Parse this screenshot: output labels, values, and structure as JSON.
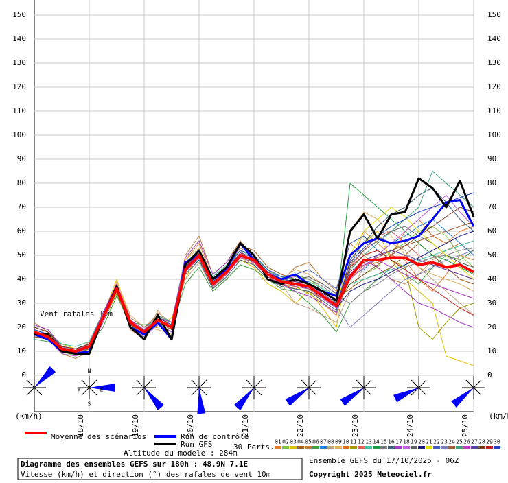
{
  "chart_data": {
    "type": "line",
    "title": "Diagramme des ensembles GEFS sur 180h : 48.9N 7.1E",
    "subtitle": "Vitesse (km/h) et direction (°) des rafales de vent 10m",
    "altitude": "Altitude du modele : 284m",
    "run_info": "Ensemble GEFS du 17/10/2025 - 06Z",
    "copyright": "Copyright 2025 Meteociel.fr",
    "ylabel": "(km/h)",
    "annotation": "Vent rafales 10m",
    "perts_label": "30 Perts.",
    "compass": [
      "N",
      "S",
      "W",
      "E"
    ],
    "categories": [
      null,
      null,
      null,
      null,
      "18/10",
      null,
      null,
      null,
      "19/10",
      null,
      null,
      null,
      "20/10",
      null,
      null,
      null,
      "21/10",
      null,
      null,
      null,
      "22/10",
      null,
      null,
      null,
      "23/10",
      null,
      null,
      null,
      "24/10",
      null,
      null,
      null,
      "25/10"
    ],
    "ylim": [
      0,
      150
    ],
    "yticks": [
      0,
      10,
      20,
      30,
      40,
      50,
      60,
      70,
      80,
      90,
      100,
      110,
      120,
      130,
      140,
      150
    ],
    "grid": true,
    "wind_directions": [
      225,
      270,
      320,
      355,
      40,
      55,
      55,
      65,
      50
    ],
    "series": [
      {
        "name": "01",
        "color": "#e08030",
        "values": [
          20,
          18,
          12,
          9,
          14,
          26,
          38,
          24,
          20,
          25,
          22,
          48,
          55,
          40,
          45,
          52,
          46,
          40,
          38,
          36,
          38,
          30,
          25,
          45,
          60,
          55,
          50,
          48,
          40,
          35,
          42,
          50,
          48
        ]
      },
      {
        "name": "02",
        "color": "#80c040",
        "values": [
          16,
          15,
          10,
          8,
          11,
          22,
          34,
          20,
          16,
          22,
          18,
          42,
          48,
          36,
          42,
          50,
          50,
          44,
          40,
          42,
          40,
          36,
          30,
          38,
          42,
          45,
          52,
          55,
          60,
          62,
          58,
          50,
          45
        ]
      },
      {
        "name": "03",
        "color": "#e0c000",
        "values": [
          19,
          17,
          13,
          11,
          12,
          25,
          40,
          23,
          19,
          20,
          24,
          40,
          52,
          37,
          44,
          48,
          45,
          38,
          35,
          30,
          35,
          28,
          20,
          50,
          55,
          60,
          48,
          40,
          35,
          30,
          8,
          6,
          4
        ]
      },
      {
        "name": "04",
        "color": "#a06020",
        "values": [
          17,
          16,
          11,
          10,
          13,
          23,
          35,
          21,
          18,
          24,
          21,
          46,
          50,
          39,
          42,
          54,
          52,
          45,
          42,
          40,
          38,
          34,
          32,
          36,
          40,
          42,
          45,
          50,
          55,
          50,
          45,
          40,
          38
        ]
      },
      {
        "name": "05",
        "color": "#c08040",
        "values": [
          22,
          18,
          9,
          7,
          10,
          24,
          36,
          19,
          15,
          27,
          19,
          50,
          58,
          42,
          47,
          56,
          49,
          41,
          39,
          45,
          47,
          40,
          35,
          55,
          50,
          45,
          40,
          38,
          42,
          48,
          52,
          55,
          50
        ]
      },
      {
        "name": "06",
        "color": "#40a040",
        "values": [
          15,
          14,
          12,
          11,
          12,
          20,
          33,
          22,
          21,
          22,
          20,
          38,
          45,
          35,
          40,
          46,
          44,
          40,
          36,
          35,
          30,
          25,
          18,
          30,
          35,
          40,
          45,
          42,
          38,
          45,
          50,
          48,
          52
        ]
      },
      {
        "name": "07",
        "color": "#2080e0",
        "values": [
          18,
          16,
          10,
          10,
          11,
          26,
          37,
          23,
          17,
          21,
          18,
          45,
          48,
          38,
          44,
          50,
          47,
          43,
          41,
          38,
          36,
          34,
          30,
          42,
          44,
          50,
          55,
          58,
          62,
          65,
          60,
          55,
          50
        ]
      },
      {
        "name": "08",
        "color": "#c0a080",
        "values": [
          21,
          19,
          12,
          10,
          13,
          25,
          35,
          21,
          19,
          26,
          22,
          40,
          47,
          36,
          45,
          53,
          50,
          44,
          38,
          30,
          28,
          25,
          22,
          35,
          45,
          50,
          55,
          52,
          45,
          40,
          35,
          30,
          25
        ]
      },
      {
        "name": "09",
        "color": "#e0b060",
        "values": [
          17,
          15,
          9,
          8,
          10,
          23,
          39,
          25,
          20,
          19,
          17,
          48,
          53,
          40,
          42,
          49,
          46,
          40,
          40,
          44,
          42,
          38,
          34,
          60,
          68,
          65,
          58,
          50,
          45,
          42,
          40,
          38,
          35
        ]
      },
      {
        "name": "10",
        "color": "#e07020",
        "values": [
          19,
          17,
          12,
          11,
          13,
          24,
          38,
          22,
          18,
          24,
          21,
          43,
          51,
          37,
          43,
          51,
          47,
          41,
          38,
          36,
          35,
          32,
          28,
          40,
          46,
          47,
          50,
          60,
          65,
          58,
          55,
          60,
          62
        ]
      },
      {
        "name": "11",
        "color": "#a0a000",
        "values": [
          16,
          16,
          11,
          10,
          12,
          22,
          34,
          21,
          17,
          23,
          20,
          45,
          49,
          39,
          44,
          50,
          48,
          43,
          40,
          37,
          34,
          30,
          26,
          44,
          50,
          52,
          48,
          45,
          20,
          15,
          22,
          28,
          30
        ]
      },
      {
        "name": "12",
        "color": "#e06060",
        "values": [
          18,
          17,
          10,
          9,
          11,
          24,
          37,
          23,
          18,
          22,
          19,
          44,
          50,
          37,
          42,
          49,
          48,
          42,
          39,
          39,
          38,
          35,
          31,
          45,
          52,
          58,
          60,
          55,
          50,
          46,
          44,
          42,
          40
        ]
      },
      {
        "name": "13",
        "color": "#40c0a0",
        "values": [
          20,
          18,
          13,
          12,
          14,
          26,
          36,
          20,
          16,
          25,
          22,
          47,
          52,
          41,
          46,
          52,
          49,
          44,
          41,
          40,
          39,
          36,
          33,
          38,
          40,
          42,
          44,
          46,
          48,
          50,
          52,
          54,
          56
        ]
      },
      {
        "name": "14",
        "color": "#20a040",
        "values": [
          17,
          15,
          10,
          9,
          11,
          23,
          35,
          22,
          19,
          21,
          18,
          43,
          49,
          37,
          43,
          50,
          47,
          41,
          38,
          37,
          36,
          32,
          28,
          80,
          75,
          70,
          65,
          60,
          55,
          50,
          48,
          45,
          42
        ]
      },
      {
        "name": "15",
        "color": "#808080",
        "values": [
          19,
          17,
          11,
          10,
          12,
          25,
          37,
          24,
          20,
          24,
          21,
          46,
          51,
          39,
          44,
          51,
          49,
          43,
          40,
          41,
          40,
          37,
          33,
          30,
          35,
          38,
          42,
          45,
          47,
          49,
          50,
          52,
          53
        ]
      },
      {
        "name": "16",
        "color": "#406080",
        "values": [
          18,
          16,
          12,
          11,
          13,
          24,
          36,
          21,
          17,
          23,
          20,
          42,
          48,
          36,
          41,
          48,
          46,
          40,
          37,
          36,
          35,
          31,
          27,
          48,
          55,
          62,
          67,
          70,
          75,
          78,
          72,
          65,
          60
        ]
      },
      {
        "name": "17",
        "color": "#a040c0",
        "values": [
          21,
          19,
          12,
          10,
          13,
          26,
          38,
          22,
          18,
          24,
          22,
          49,
          56,
          42,
          47,
          55,
          50,
          42,
          38,
          35,
          33,
          30,
          26,
          42,
          48,
          45,
          40,
          35,
          30,
          28,
          25,
          22,
          20
        ]
      },
      {
        "name": "18",
        "color": "#c060e0",
        "values": [
          16,
          15,
          9,
          8,
          10,
          22,
          35,
          20,
          16,
          21,
          18,
          44,
          50,
          38,
          43,
          50,
          48,
          43,
          40,
          39,
          37,
          34,
          30,
          40,
          45,
          50,
          55,
          60,
          65,
          70,
          75,
          68,
          62
        ]
      },
      {
        "name": "19",
        "color": "#606060",
        "values": [
          18,
          16,
          11,
          10,
          12,
          24,
          36,
          23,
          19,
          23,
          20,
          45,
          51,
          39,
          44,
          50,
          48,
          42,
          39,
          40,
          41,
          38,
          34,
          46,
          52,
          56,
          60,
          62,
          58,
          55,
          50,
          47,
          45
        ]
      },
      {
        "name": "20",
        "color": "#202080",
        "values": [
          19,
          17,
          12,
          11,
          13,
          25,
          37,
          22,
          18,
          24,
          21,
          44,
          50,
          38,
          43,
          50,
          48,
          42,
          39,
          38,
          36,
          32,
          28,
          35,
          38,
          40,
          43,
          46,
          49,
          52,
          55,
          58,
          60
        ]
      },
      {
        "name": "21",
        "color": "#e0e000",
        "values": [
          17,
          15,
          10,
          9,
          11,
          23,
          35,
          21,
          17,
          22,
          19,
          43,
          49,
          37,
          42,
          49,
          47,
          41,
          38,
          37,
          36,
          33,
          29,
          50,
          60,
          65,
          70,
          66,
          60,
          55,
          50,
          45,
          40
        ]
      },
      {
        "name": "22",
        "color": "#4060c0",
        "values": [
          18,
          16,
          11,
          10,
          12,
          24,
          36,
          22,
          18,
          23,
          20,
          46,
          52,
          38,
          45,
          52,
          50,
          44,
          41,
          42,
          44,
          40,
          36,
          55,
          58,
          52,
          48,
          44,
          40,
          38,
          36,
          34,
          32
        ]
      },
      {
        "name": "23",
        "color": "#8080c0",
        "values": [
          20,
          18,
          12,
          10,
          13,
          25,
          37,
          23,
          19,
          24,
          21,
          44,
          50,
          38,
          43,
          50,
          48,
          42,
          39,
          38,
          37,
          33,
          29,
          20,
          25,
          30,
          35,
          40,
          42,
          45,
          48,
          50,
          52
        ]
      },
      {
        "name": "24",
        "color": "#a06040",
        "values": [
          16,
          15,
          10,
          9,
          11,
          23,
          35,
          21,
          17,
          22,
          19,
          45,
          51,
          37,
          44,
          51,
          49,
          43,
          40,
          39,
          38,
          34,
          30,
          41,
          47,
          49,
          52,
          54,
          56,
          58,
          60,
          62,
          64
        ]
      },
      {
        "name": "25",
        "color": "#40a080",
        "values": [
          19,
          17,
          11,
          10,
          12,
          24,
          36,
          22,
          18,
          23,
          20,
          44,
          50,
          38,
          43,
          50,
          48,
          42,
          39,
          38,
          37,
          33,
          29,
          44,
          50,
          55,
          60,
          65,
          70,
          85,
          80,
          75,
          70
        ]
      },
      {
        "name": "26",
        "color": "#c040c0",
        "values": [
          17,
          16,
          12,
          11,
          12,
          25,
          38,
          23,
          19,
          23,
          20,
          43,
          49,
          37,
          42,
          49,
          47,
          41,
          38,
          37,
          36,
          32,
          28,
          42,
          46,
          48,
          45,
          42,
          40,
          38,
          36,
          34,
          32
        ]
      },
      {
        "name": "27",
        "color": "#6040a0",
        "values": [
          18,
          17,
          10,
          9,
          12,
          24,
          37,
          22,
          18,
          24,
          21,
          45,
          51,
          39,
          44,
          51,
          49,
          43,
          40,
          39,
          38,
          34,
          30,
          43,
          48,
          50,
          52,
          50,
          48,
          46,
          44,
          42,
          40
        ]
      },
      {
        "name": "28",
        "color": "#804020",
        "values": [
          20,
          18,
          12,
          11,
          13,
          25,
          36,
          21,
          17,
          23,
          20,
          44,
          50,
          38,
          43,
          50,
          48,
          42,
          39,
          38,
          37,
          33,
          29,
          38,
          42,
          46,
          50,
          54,
          58,
          62,
          66,
          70,
          68
        ]
      },
      {
        "name": "29",
        "color": "#c02020",
        "values": [
          17,
          16,
          11,
          10,
          12,
          24,
          35,
          22,
          18,
          23,
          20,
          44,
          50,
          38,
          43,
          50,
          48,
          42,
          39,
          38,
          37,
          33,
          29,
          45,
          50,
          52,
          48,
          44,
          40,
          36,
          32,
          28,
          25
        ]
      },
      {
        "name": "30",
        "color": "#2040c0",
        "values": [
          19,
          17,
          11,
          10,
          12,
          24,
          37,
          22,
          18,
          23,
          20,
          44,
          50,
          38,
          43,
          50,
          48,
          42,
          39,
          38,
          37,
          33,
          29,
          47,
          53,
          58,
          62,
          65,
          68,
          70,
          72,
          74,
          76
        ]
      },
      {
        "name": "Run de contrôle",
        "color": "#0000ff",
        "values": [
          17,
          15,
          10,
          9,
          10,
          24,
          37,
          20,
          17,
          22,
          15,
          47,
          50,
          40,
          44,
          55,
          48,
          42,
          40,
          42,
          38,
          35,
          33,
          50,
          55,
          57,
          55,
          56,
          58,
          65,
          72,
          73,
          62
        ]
      },
      {
        "name": "Run GFS",
        "color": "#000000",
        "values": [
          17,
          17,
          10,
          9,
          9,
          24,
          37,
          20,
          15,
          25,
          15,
          46,
          52,
          40,
          45,
          55,
          50,
          40,
          38,
          40,
          38,
          35,
          31,
          60,
          67,
          57,
          67,
          68,
          82,
          78,
          70,
          81,
          66
        ]
      },
      {
        "name": "Moyenne des scénarios",
        "color": "#ff0000",
        "values": [
          18,
          16,
          11,
          10,
          12,
          24,
          36,
          22,
          18,
          23,
          20,
          44,
          50,
          38,
          43,
          50,
          48,
          42,
          39,
          38,
          37,
          33,
          29,
          41,
          48,
          48,
          49,
          49,
          46,
          47,
          45,
          46,
          43
        ]
      }
    ]
  }
}
